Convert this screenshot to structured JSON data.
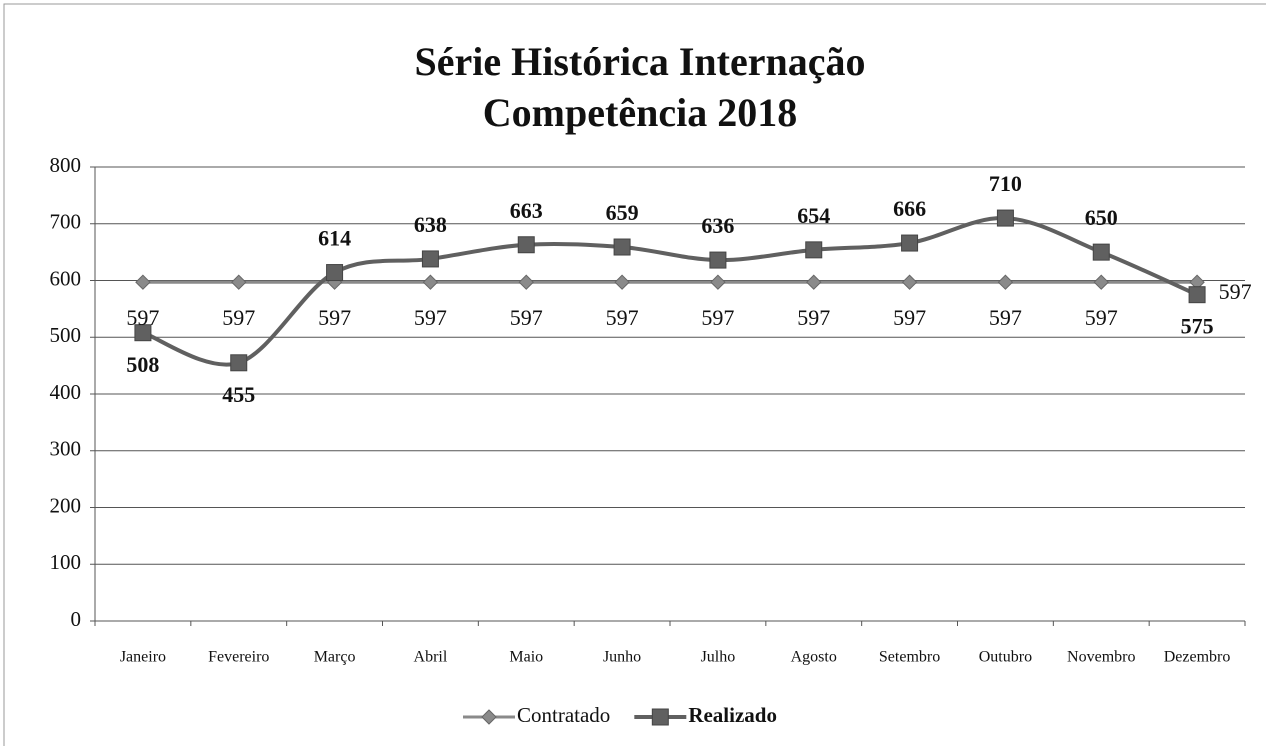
{
  "chart_data": {
    "type": "line",
    "title": "Série Histórica Internação",
    "subtitle": "Competência 2018",
    "categories": [
      "Janeiro",
      "Fevereiro",
      "Março",
      "Abril",
      "Maio",
      "Junho",
      "Julho",
      "Agosto",
      "Setembro",
      "Outubro",
      "Novembro",
      "Dezembro"
    ],
    "series": [
      {
        "name": "Contratado",
        "color": "#8a8a8a",
        "marker": "diamond",
        "values": [
          597,
          597,
          597,
          597,
          597,
          597,
          597,
          597,
          597,
          597,
          597,
          597
        ]
      },
      {
        "name": "Realizado",
        "color": "#606060",
        "marker": "square",
        "values": [
          508,
          455,
          614,
          638,
          663,
          659,
          636,
          654,
          666,
          710,
          650,
          575
        ]
      }
    ],
    "ylim": [
      0,
      800
    ],
    "yticks": [
      0,
      100,
      200,
      300,
      400,
      500,
      600,
      700,
      800
    ],
    "grid": true,
    "legend": "bottom"
  }
}
